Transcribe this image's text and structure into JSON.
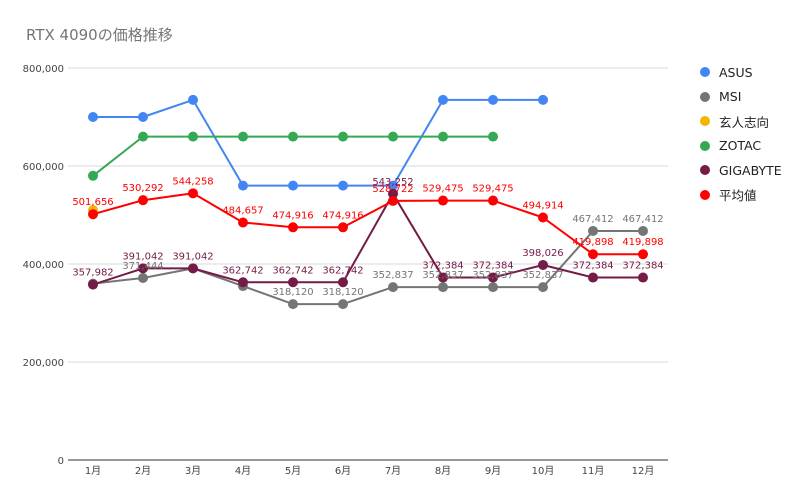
{
  "chart_data": {
    "type": "line",
    "title": "RTX 4090の価格推移",
    "categories": [
      "1月",
      "2月",
      "3月",
      "4月",
      "5月",
      "6月",
      "7月",
      "8月",
      "9月",
      "10月",
      "11月",
      "12月"
    ],
    "ylim": [
      0,
      800000
    ],
    "yticks": [
      0,
      200000,
      400000,
      600000,
      800000
    ],
    "ytick_labels": [
      "0",
      "200,000",
      "400,000",
      "600,000",
      "800,000"
    ],
    "grid": true,
    "legend_position": "right",
    "series": [
      {
        "name": "ASUS",
        "color": "#4285f4",
        "values": [
          700000,
          700000,
          735000,
          560000,
          560000,
          560000,
          560000,
          735000,
          735000,
          735000,
          null,
          null
        ],
        "labels": null
      },
      {
        "name": "MSI",
        "color": "#757575",
        "values": [
          360000,
          371444,
          391042,
          355000,
          318120,
          318120,
          352837,
          352837,
          352837,
          352837,
          467412,
          467412
        ],
        "labels": [
          null,
          "371,444",
          null,
          null,
          "318,120",
          "318,120",
          "352,837",
          "352,837",
          "352,837",
          "352,837",
          "467,412",
          "467,412"
        ]
      },
      {
        "name": "玄人志向",
        "color": "#f4b400",
        "values": [
          510000,
          null,
          null,
          null,
          null,
          null,
          null,
          null,
          null,
          null,
          null,
          null
        ],
        "labels": null
      },
      {
        "name": "ZOTAC",
        "color": "#34a853",
        "values": [
          580000,
          660000,
          660000,
          660000,
          660000,
          660000,
          660000,
          660000,
          660000,
          null,
          null,
          null
        ],
        "labels": null
      },
      {
        "name": "GIGABYTE",
        "color": "#741b47",
        "values": [
          357982,
          391042,
          391042,
          362742,
          362742,
          362742,
          543252,
          372384,
          372384,
          398026,
          372384,
          372384
        ],
        "labels": [
          "357,982",
          "391,042",
          "391,042",
          "362,742",
          "362,742",
          "362,742",
          "543,252",
          "372,384",
          "372,384",
          "398,026",
          "372,384",
          "372,384"
        ]
      },
      {
        "name": "平均値",
        "color": "#ff0000",
        "values": [
          501656,
          530292,
          544258,
          484657,
          474916,
          474916,
          528722,
          529475,
          529475,
          494914,
          419898,
          419898
        ],
        "labels": [
          "501,656",
          "530,292",
          "544,258",
          "484,657",
          "474,916",
          "474,916",
          "528,722",
          "529,475",
          "529,475",
          "494,914",
          "419,898",
          "419,898"
        ]
      }
    ]
  }
}
